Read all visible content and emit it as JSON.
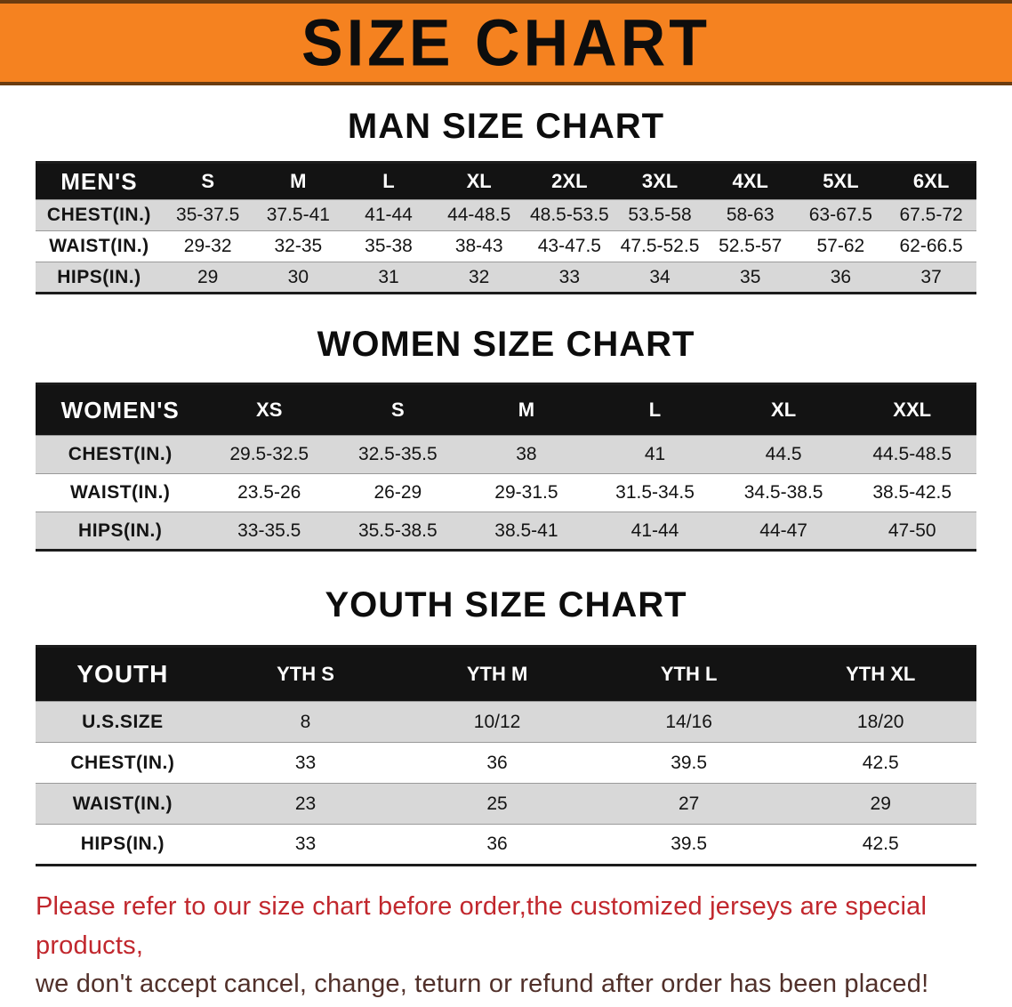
{
  "banner": {
    "title": "SIZE CHART"
  },
  "sections": [
    {
      "id": "men",
      "heading": "MAN SIZE CHART",
      "table": {
        "corner": "MEN'S",
        "columns": [
          "S",
          "M",
          "L",
          "XL",
          "2XL",
          "3XL",
          "4XL",
          "5XL",
          "6XL"
        ],
        "rows": [
          {
            "label": "CHEST(IN.)",
            "values": [
              "35-37.5",
              "37.5-41",
              "41-44",
              "44-48.5",
              "48.5-53.5",
              "53.5-58",
              "58-63",
              "63-67.5",
              "67.5-72"
            ]
          },
          {
            "label": "WAIST(IN.)",
            "values": [
              "29-32",
              "32-35",
              "35-38",
              "38-43",
              "43-47.5",
              "47.5-52.5",
              "52.5-57",
              "57-62",
              "62-66.5"
            ]
          },
          {
            "label": "HIPS(IN.)",
            "values": [
              "29",
              "30",
              "31",
              "32",
              "33",
              "34",
              "35",
              "36",
              "37"
            ]
          }
        ]
      }
    },
    {
      "id": "women",
      "heading": "WOMEN SIZE CHART",
      "table": {
        "corner": "WOMEN'S",
        "columns": [
          "XS",
          "S",
          "M",
          "L",
          "XL",
          "XXL"
        ],
        "rows": [
          {
            "label": "CHEST(IN.)",
            "values": [
              "29.5-32.5",
              "32.5-35.5",
              "38",
              "41",
              "44.5",
              "44.5-48.5"
            ]
          },
          {
            "label": "WAIST(IN.)",
            "values": [
              "23.5-26",
              "26-29",
              "29-31.5",
              "31.5-34.5",
              "34.5-38.5",
              "38.5-42.5"
            ]
          },
          {
            "label": "HIPS(IN.)",
            "values": [
              "33-35.5",
              "35.5-38.5",
              "38.5-41",
              "41-44",
              "44-47",
              "47-50"
            ]
          }
        ]
      }
    },
    {
      "id": "youth",
      "heading": "YOUTH SIZE CHART",
      "table": {
        "corner": "YOUTH",
        "columns": [
          "YTH S",
          "YTH M",
          "YTH L",
          "YTH XL"
        ],
        "rows": [
          {
            "label": "U.S.SIZE",
            "values": [
              "8",
              "10/12",
              "14/16",
              "18/20"
            ]
          },
          {
            "label": "CHEST(IN.)",
            "values": [
              "33",
              "36",
              "39.5",
              "42.5"
            ]
          },
          {
            "label": "WAIST(IN.)",
            "values": [
              "23",
              "25",
              "27",
              "29"
            ]
          },
          {
            "label": "HIPS(IN.)",
            "values": [
              "33",
              "36",
              "39.5",
              "42.5"
            ]
          }
        ]
      }
    }
  ],
  "disclaimer": {
    "line1": "Please refer to our size chart before order,the customized jerseys are special products,",
    "line2": "we don't accept cancel, change, teturn or refund after order has been placed!"
  },
  "colors": {
    "banner_bg": "#f58220",
    "banner_border": "#6b3c10",
    "header_bg": "#131313",
    "row_alt": "#d8d8d8",
    "disclaimer_red": "#c1272d",
    "disclaimer_dark": "#51302a"
  }
}
